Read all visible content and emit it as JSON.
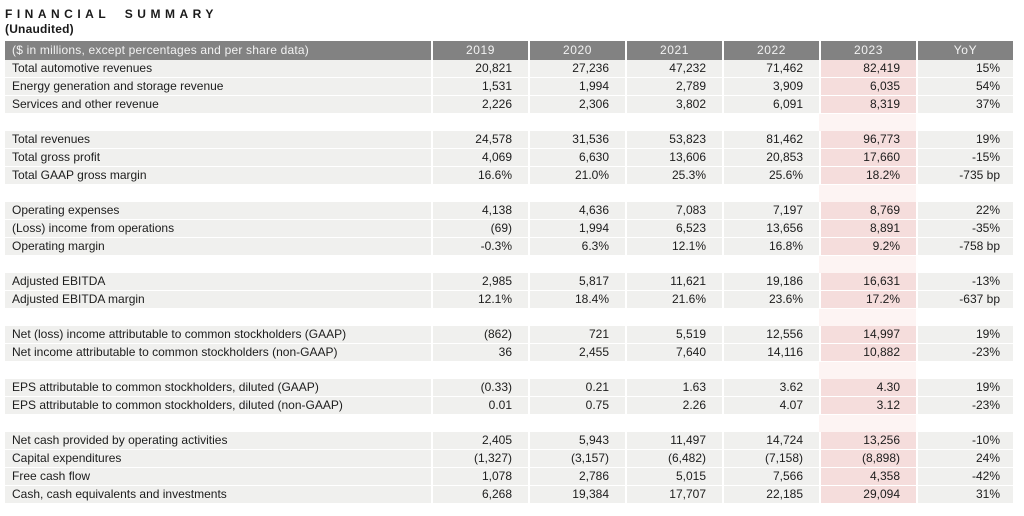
{
  "page": {
    "title": "FINANCIAL SUMMARY",
    "subtitle": "(Unaudited)"
  },
  "table": {
    "header": {
      "label": "($ in millions, except percentages and per share data)",
      "columns": [
        "2019",
        "2020",
        "2021",
        "2022",
        "2023",
        "YoY"
      ],
      "highlighted_column": "2023"
    },
    "sections": [
      {
        "rows": [
          {
            "label": "Total automotive revenues",
            "values": [
              "20,821",
              "27,236",
              "47,232",
              "71,462",
              "82,419",
              "15%"
            ]
          },
          {
            "label": "Energy generation and storage revenue",
            "values": [
              "1,531",
              "1,994",
              "2,789",
              "3,909",
              "6,035",
              "54%"
            ]
          },
          {
            "label": "Services and other revenue",
            "values": [
              "2,226",
              "2,306",
              "3,802",
              "6,091",
              "8,319",
              "37%"
            ]
          }
        ]
      },
      {
        "rows": [
          {
            "label": "Total revenues",
            "values": [
              "24,578",
              "31,536",
              "53,823",
              "81,462",
              "96,773",
              "19%"
            ]
          },
          {
            "label": "Total gross profit",
            "values": [
              "4,069",
              "6,630",
              "13,606",
              "20,853",
              "17,660",
              "-15%"
            ]
          },
          {
            "label": "Total GAAP gross margin",
            "values": [
              "16.6%",
              "21.0%",
              "25.3%",
              "25.6%",
              "18.2%",
              "-735 bp"
            ]
          }
        ]
      },
      {
        "rows": [
          {
            "label": "Operating expenses",
            "values": [
              "4,138",
              "4,636",
              "7,083",
              "7,197",
              "8,769",
              "22%"
            ]
          },
          {
            "label": "(Loss) income from operations",
            "values": [
              "(69)",
              "1,994",
              "6,523",
              "13,656",
              "8,891",
              "-35%"
            ]
          },
          {
            "label": "Operating margin",
            "values": [
              "-0.3%",
              "6.3%",
              "12.1%",
              "16.8%",
              "9.2%",
              "-758 bp"
            ]
          }
        ]
      },
      {
        "rows": [
          {
            "label": "Adjusted EBITDA",
            "values": [
              "2,985",
              "5,817",
              "11,621",
              "19,186",
              "16,631",
              "-13%"
            ]
          },
          {
            "label": "Adjusted EBITDA margin",
            "values": [
              "12.1%",
              "18.4%",
              "21.6%",
              "23.6%",
              "17.2%",
              "-637 bp"
            ]
          }
        ]
      },
      {
        "rows": [
          {
            "label": "Net (loss) income attributable to common stockholders (GAAP)",
            "values": [
              "(862)",
              "721",
              "5,519",
              "12,556",
              "14,997",
              "19%"
            ]
          },
          {
            "label": "Net income attributable to common stockholders (non-GAAP)",
            "values": [
              "36",
              "2,455",
              "7,640",
              "14,116",
              "10,882",
              "-23%"
            ]
          }
        ]
      },
      {
        "rows": [
          {
            "label": "EPS attributable to common stockholders, diluted (GAAP)",
            "values": [
              "(0.33)",
              "0.21",
              "1.63",
              "3.62",
              "4.30",
              "19%"
            ]
          },
          {
            "label": "EPS attributable to common stockholders, diluted (non-GAAP)",
            "values": [
              "0.01",
              "0.75",
              "2.26",
              "4.07",
              "3.12",
              "-23%"
            ]
          }
        ]
      },
      {
        "rows": [
          {
            "label": "Net cash provided by operating activities",
            "values": [
              "2,405",
              "5,943",
              "11,497",
              "14,724",
              "13,256",
              "-10%"
            ]
          },
          {
            "label": "Capital expenditures",
            "values": [
              "(1,327)",
              "(3,157)",
              "(6,482)",
              "(7,158)",
              "(8,898)",
              "24%"
            ]
          },
          {
            "label": "Free cash flow",
            "values": [
              "1,078",
              "2,786",
              "5,015",
              "7,566",
              "4,358",
              "-42%"
            ]
          },
          {
            "label": "Cash, cash equivalents and investments",
            "values": [
              "6,268",
              "19,384",
              "17,707",
              "22,185",
              "29,094",
              "31%"
            ]
          }
        ]
      }
    ]
  },
  "colors": {
    "header_bg": "#828282",
    "header_text": "#f2f2f2",
    "row_bg": "#f0f0ee",
    "highlight_bg": "#f5dddc",
    "highlight_spacer_bg": "#fdf4f3",
    "text": "#1c1c1c"
  }
}
